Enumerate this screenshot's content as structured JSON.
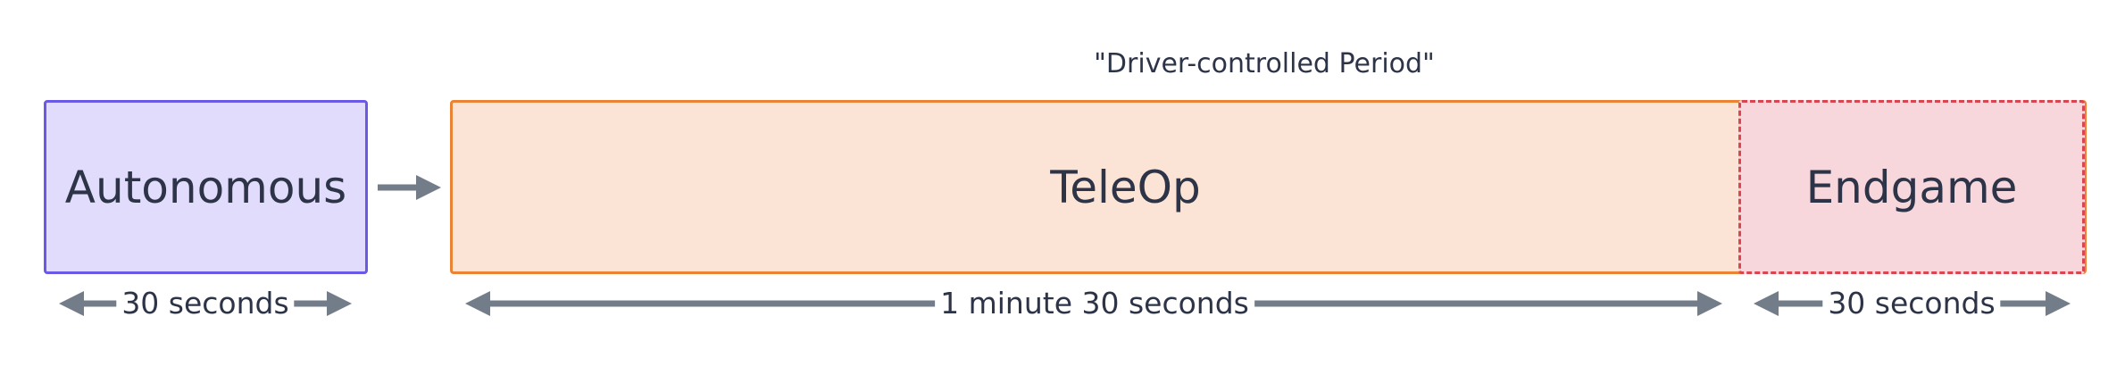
{
  "caption": "\"Driver-controlled Period\"",
  "phases": {
    "autonomous": {
      "label": "Autonomous",
      "duration": "30 seconds"
    },
    "teleop": {
      "label": "TeleOp",
      "duration": "1 minute 30 seconds"
    },
    "endgame": {
      "label": "Endgame",
      "duration": "30 seconds"
    }
  }
}
